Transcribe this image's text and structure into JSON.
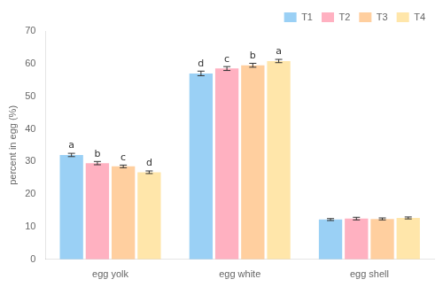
{
  "chart_data": {
    "type": "bar",
    "categories": [
      "egg yolk",
      "egg white",
      "egg shell"
    ],
    "series": [
      {
        "name": "T1",
        "values": [
          32.0,
          57.0,
          12.2
        ],
        "errors": [
          0.5,
          0.7,
          0.3
        ],
        "sig_letters": [
          "a",
          "d",
          null
        ]
      },
      {
        "name": "T2",
        "values": [
          29.5,
          58.5,
          12.5
        ],
        "errors": [
          0.5,
          0.6,
          0.4
        ],
        "sig_letters": [
          "b",
          "c",
          null
        ]
      },
      {
        "name": "T3",
        "values": [
          28.5,
          59.5,
          12.4
        ],
        "errors": [
          0.4,
          0.6,
          0.3
        ],
        "sig_letters": [
          "c",
          "b",
          null
        ]
      },
      {
        "name": "T4",
        "values": [
          26.7,
          60.8,
          12.7
        ],
        "errors": [
          0.4,
          0.5,
          0.3
        ],
        "sig_letters": [
          "d",
          "a",
          null
        ]
      }
    ],
    "ylabel": "percent in egg (%)",
    "ylim": [
      0,
      70
    ],
    "yticks": [
      0,
      10,
      20,
      30,
      40,
      50,
      60,
      70
    ],
    "grid": false,
    "legend": "upper right"
  }
}
